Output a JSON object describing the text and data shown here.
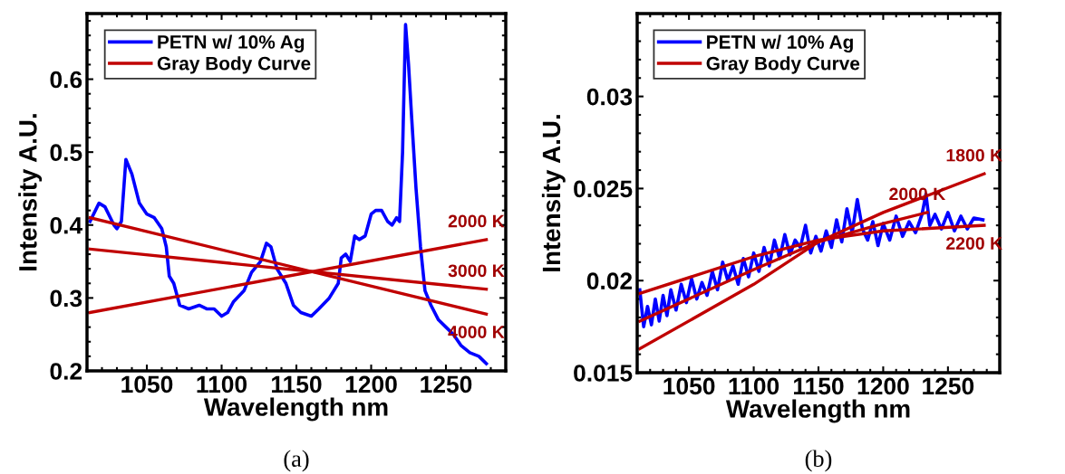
{
  "chart_data": [
    {
      "type": "line",
      "xlabel": "Wavelength nm",
      "ylabel": "Intensity A.U.",
      "xlim": [
        1010,
        1290
      ],
      "ylim": [
        0.2,
        0.69
      ],
      "xticks": [
        1050,
        1100,
        1150,
        1200,
        1250
      ],
      "yticks": [
        0.2,
        0.3,
        0.4,
        0.5,
        0.6
      ],
      "legend": "top left",
      "grid": false,
      "series": [
        {
          "name": "PETN w/ 10% Ag",
          "color": "#0000ff",
          "x": [
            1012,
            1018,
            1022,
            1028,
            1030,
            1033,
            1036,
            1040,
            1045,
            1050,
            1055,
            1060,
            1063,
            1065,
            1068,
            1072,
            1078,
            1085,
            1090,
            1095,
            1100,
            1104,
            1108,
            1115,
            1120,
            1126,
            1130,
            1133,
            1137,
            1143,
            1148,
            1153,
            1160,
            1165,
            1172,
            1178,
            1180,
            1183,
            1186,
            1189,
            1192,
            1196,
            1200,
            1203,
            1207,
            1211,
            1214,
            1217,
            1219,
            1221,
            1223,
            1225,
            1227,
            1230,
            1233,
            1236,
            1240,
            1245,
            1250,
            1255,
            1260,
            1266,
            1272,
            1277
          ],
          "values": [
            0.405,
            0.43,
            0.425,
            0.4,
            0.395,
            0.405,
            0.49,
            0.47,
            0.43,
            0.415,
            0.41,
            0.395,
            0.37,
            0.33,
            0.32,
            0.29,
            0.285,
            0.29,
            0.285,
            0.285,
            0.275,
            0.28,
            0.295,
            0.31,
            0.335,
            0.35,
            0.375,
            0.37,
            0.34,
            0.32,
            0.29,
            0.28,
            0.275,
            0.285,
            0.3,
            0.32,
            0.355,
            0.36,
            0.35,
            0.385,
            0.38,
            0.385,
            0.415,
            0.42,
            0.42,
            0.405,
            0.4,
            0.41,
            0.405,
            0.5,
            0.675,
            0.62,
            0.55,
            0.45,
            0.37,
            0.31,
            0.29,
            0.27,
            0.26,
            0.25,
            0.235,
            0.225,
            0.22,
            0.21
          ]
        },
        {
          "name": "Gray Body Curve",
          "color": "#c00000",
          "x": [
            1012,
            1277
          ],
          "values": [
            0.28,
            0.38
          ]
        },
        {
          "color": "#c00000",
          "x": [
            1012,
            1277
          ],
          "values": [
            0.367,
            0.312
          ]
        },
        {
          "color": "#c00000",
          "x": [
            1012,
            1277
          ],
          "values": [
            0.41,
            0.278
          ]
        }
      ],
      "annotations": [
        "2000 K",
        "3000 K",
        "4000 K",
        "(a)"
      ]
    },
    {
      "type": "line",
      "xlabel": "Wavelength nm",
      "ylabel": "Intensity A.U.",
      "xlim": [
        1010,
        1290
      ],
      "ylim": [
        0.015,
        0.0345
      ],
      "xticks": [
        1050,
        1100,
        1150,
        1200,
        1250
      ],
      "yticks": [
        0.015,
        0.02,
        0.025,
        0.03
      ],
      "legend": "top left",
      "grid": false,
      "series": [
        {
          "name": "PETN w/ 10% Ag",
          "color": "#0000ff",
          "x": [
            1012,
            1015,
            1018,
            1021,
            1024,
            1027,
            1030,
            1033,
            1036,
            1040,
            1044,
            1048,
            1052,
            1056,
            1060,
            1064,
            1068,
            1072,
            1076,
            1080,
            1084,
            1088,
            1092,
            1096,
            1100,
            1104,
            1108,
            1112,
            1116,
            1120,
            1124,
            1128,
            1132,
            1136,
            1140,
            1144,
            1148,
            1152,
            1156,
            1160,
            1164,
            1168,
            1172,
            1176,
            1180,
            1184,
            1188,
            1192,
            1196,
            1200,
            1205,
            1210,
            1215,
            1220,
            1225,
            1230,
            1233,
            1236,
            1240,
            1245,
            1250,
            1255,
            1260,
            1265,
            1270,
            1277
          ],
          "values": [
            0.0195,
            0.0175,
            0.0186,
            0.0176,
            0.019,
            0.0178,
            0.0192,
            0.0181,
            0.0195,
            0.0184,
            0.0198,
            0.0188,
            0.0201,
            0.019,
            0.0199,
            0.0192,
            0.0205,
            0.0195,
            0.021,
            0.02,
            0.0208,
            0.0198,
            0.0212,
            0.0202,
            0.0215,
            0.0205,
            0.0218,
            0.0208,
            0.0222,
            0.0212,
            0.0225,
            0.0214,
            0.0222,
            0.0218,
            0.023,
            0.0215,
            0.0224,
            0.0216,
            0.0227,
            0.0218,
            0.0233,
            0.0221,
            0.0239,
            0.0226,
            0.0244,
            0.0228,
            0.0222,
            0.0232,
            0.0219,
            0.0231,
            0.0222,
            0.0235,
            0.0224,
            0.0232,
            0.0226,
            0.0236,
            0.0247,
            0.023,
            0.0236,
            0.0228,
            0.0237,
            0.0227,
            0.0235,
            0.0228,
            0.0234,
            0.0233
          ]
        },
        {
          "name": "Gray Body Curve",
          "color": "#c00000",
          "x": [
            1012,
            1100,
            1150,
            1200,
            1278
          ],
          "values": [
            0.0163,
            0.0198,
            0.0221,
            0.0237,
            0.0258
          ]
        },
        {
          "color": "#c00000",
          "x": [
            1012,
            1100,
            1150,
            1200,
            1234
          ],
          "values": [
            0.0178,
            0.0206,
            0.0221,
            0.0231,
            0.0237
          ]
        },
        {
          "color": "#c00000",
          "x": [
            1012,
            1100,
            1150,
            1200,
            1278
          ],
          "values": [
            0.0193,
            0.0213,
            0.0222,
            0.0227,
            0.023
          ]
        }
      ],
      "annotations": [
        "1800 K",
        "2000 K",
        "2200 K",
        "(b)"
      ]
    }
  ]
}
